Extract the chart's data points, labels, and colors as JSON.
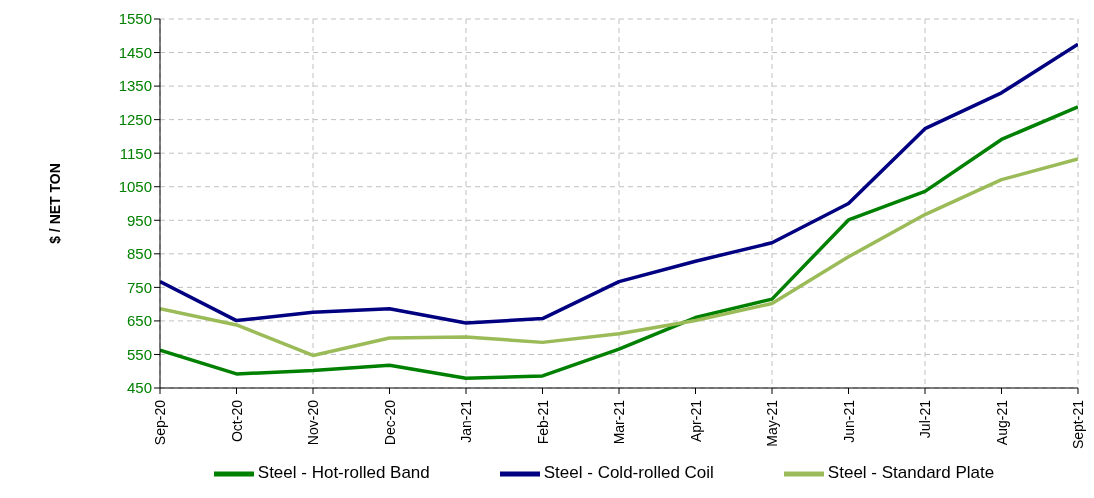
{
  "chart_data": {
    "type": "line",
    "ylabel": "$ / NET TON",
    "categories": [
      "Sep-20",
      "Oct-20",
      "Nov-20",
      "Dec-20",
      "Jan-21",
      "Feb-21",
      "Mar-21",
      "Apr-21",
      "May-21",
      "Jun-21",
      "Jul-21",
      "Aug-21",
      "Sept-21"
    ],
    "series": [
      {
        "name": "Steel - Hot-rolled Band",
        "color": "#008000",
        "values": [
          563,
          492,
          502,
          518,
          479,
          486,
          566,
          660,
          715,
          951,
          1036,
          1191,
          1288
        ]
      },
      {
        "name": "Steel - Cold-rolled Coil",
        "color": "#000080",
        "values": [
          767,
          651,
          676,
          686,
          644,
          657,
          767,
          828,
          883,
          1000,
          1223,
          1330,
          1475
        ]
      },
      {
        "name": "Steel - Standard Plate",
        "color": "#9bbb59",
        "values": [
          686,
          638,
          547,
          599,
          602,
          586,
          612,
          651,
          702,
          841,
          967,
          1071,
          1133
        ]
      }
    ],
    "ylim": [
      450,
      1550
    ],
    "yticks": [
      450,
      550,
      650,
      750,
      850,
      950,
      1050,
      1150,
      1250,
      1350,
      1450,
      1550
    ],
    "grid": true,
    "legend": "bottom",
    "marker": "none",
    "line_style": "solid"
  }
}
